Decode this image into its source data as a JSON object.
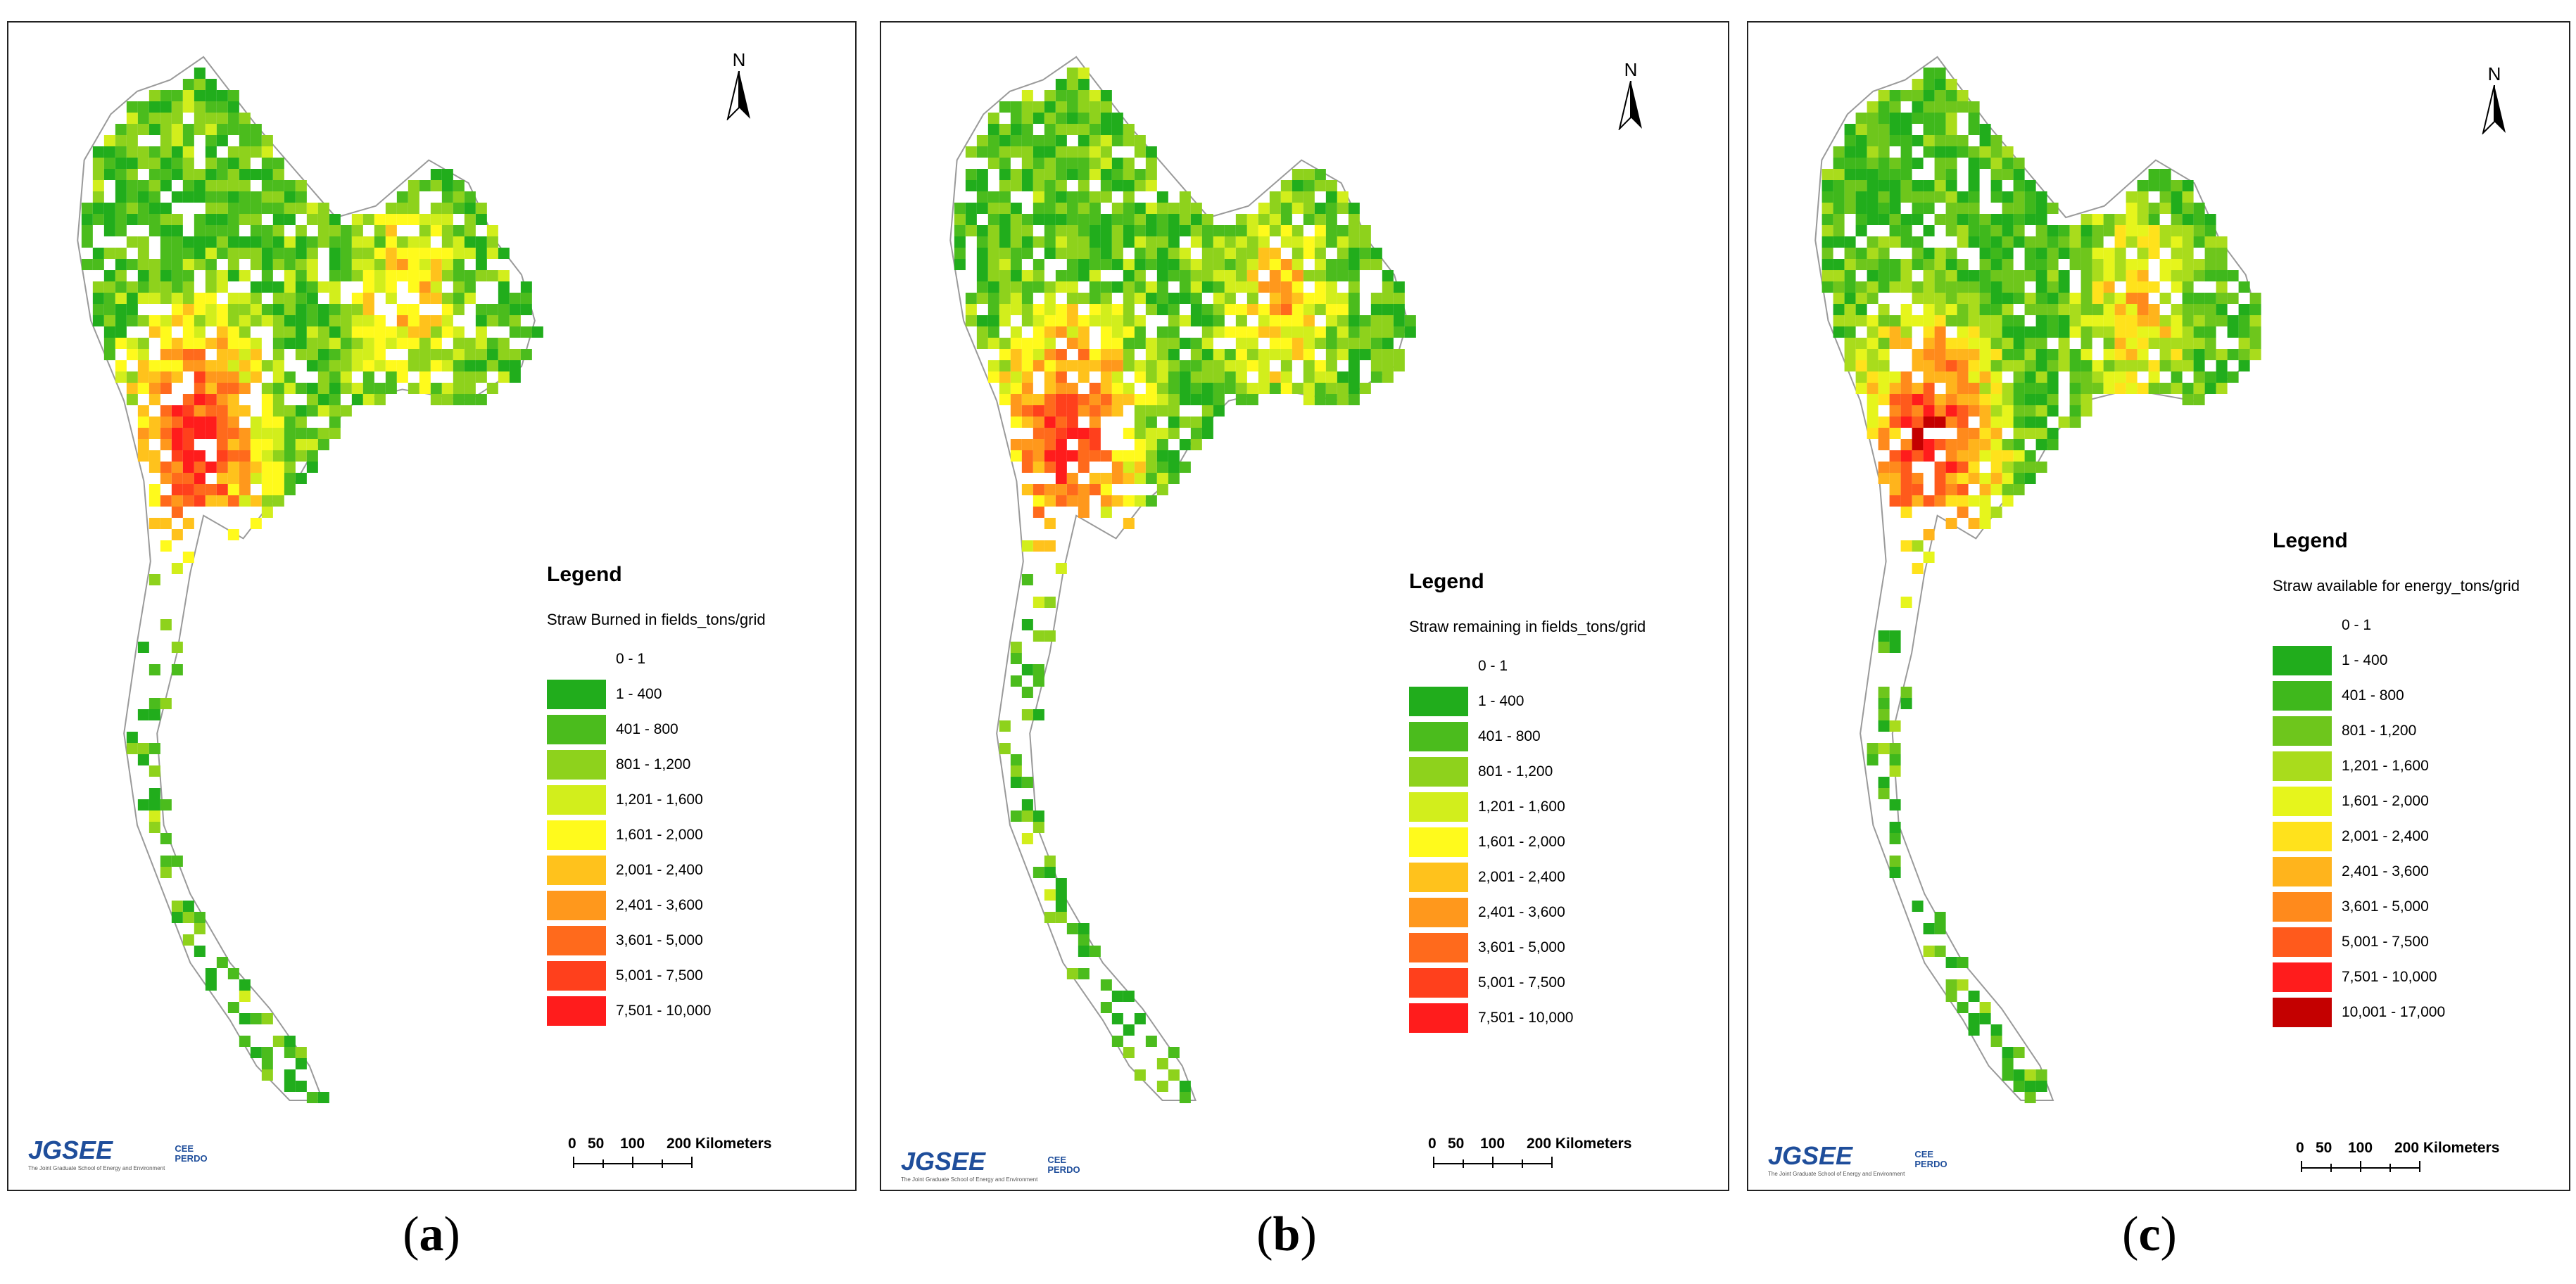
{
  "panels": [
    {
      "caption_letter": "a",
      "north_label": "N",
      "legend_title": "Legend",
      "legend_subtitle": "Straw Burned in fields_tons/grid",
      "classes": [
        {
          "label": "0 - 1",
          "color": ""
        },
        {
          "label": "1 - 400",
          "color": "#21ad1c"
        },
        {
          "label": "401 - 800",
          "color": "#4bbc1d"
        },
        {
          "label": "801 - 1,200",
          "color": "#8ed21c"
        },
        {
          "label": "1,201 - 1,600",
          "color": "#d2ee1c"
        },
        {
          "label": "1,601 - 2,000",
          "color": "#fffa1c"
        },
        {
          "label": "2,001 - 2,400",
          "color": "#ffc21c"
        },
        {
          "label": "2,401 - 3,600",
          "color": "#ff981c"
        },
        {
          "label": "3,601 - 5,000",
          "color": "#ff6a1c"
        },
        {
          "label": "5,001 - 7,500",
          "color": "#ff401c"
        },
        {
          "label": "7,501 - 10,000",
          "color": "#ff1c1c"
        }
      ],
      "scale_labels": [
        "0",
        "50",
        "100",
        "200 Kilometers"
      ],
      "logo_text": "JGSEE",
      "logo_sub": "The Joint Graduate School of Energy and Environment",
      "logo2_text": "CEE PERDO"
    },
    {
      "caption_letter": "b",
      "north_label": "N",
      "legend_title": "Legend",
      "legend_subtitle": "Straw remaining in fields_tons/grid",
      "classes": [
        {
          "label": "0 - 1",
          "color": ""
        },
        {
          "label": "1 - 400",
          "color": "#21ad1c"
        },
        {
          "label": "401 - 800",
          "color": "#4bbc1d"
        },
        {
          "label": "801 - 1,200",
          "color": "#8ed21c"
        },
        {
          "label": "1,201 - 1,600",
          "color": "#d2ee1c"
        },
        {
          "label": "1,601 - 2,000",
          "color": "#fffa1c"
        },
        {
          "label": "2,001 - 2,400",
          "color": "#ffc21c"
        },
        {
          "label": "2,401 - 3,600",
          "color": "#ff981c"
        },
        {
          "label": "3,601 - 5,000",
          "color": "#ff6a1c"
        },
        {
          "label": "5,001 - 7,500",
          "color": "#ff401c"
        },
        {
          "label": "7,501 - 10,000",
          "color": "#ff1c1c"
        }
      ],
      "scale_labels": [
        "0",
        "50",
        "100",
        "200 Kilometers"
      ],
      "logo_text": "JGSEE",
      "logo_sub": "The Joint Graduate School of Energy and Environment",
      "logo2_text": "CEE PERDO"
    },
    {
      "caption_letter": "c",
      "north_label": "N",
      "legend_title": "Legend",
      "legend_subtitle": "Straw available for energy_tons/grid",
      "classes": [
        {
          "label": "0 - 1",
          "color": ""
        },
        {
          "label": "1 - 400",
          "color": "#21ad1c"
        },
        {
          "label": "401 - 800",
          "color": "#3fb81c"
        },
        {
          "label": "801 - 1,200",
          "color": "#6ec61c"
        },
        {
          "label": "1,201 - 1,600",
          "color": "#a9dc1c"
        },
        {
          "label": "1,601 - 2,000",
          "color": "#e6f51c"
        },
        {
          "label": "2,001 - 2,400",
          "color": "#ffe21c"
        },
        {
          "label": "2,401 - 3,600",
          "color": "#ffb41c"
        },
        {
          "label": "3,601 - 5,000",
          "color": "#ff8a1c"
        },
        {
          "label": "5,001 - 7,500",
          "color": "#ff5a1c"
        },
        {
          "label": "7,501 - 10,000",
          "color": "#ff1c1c"
        },
        {
          "label": "10,001 - 17,000",
          "color": "#c40000"
        }
      ],
      "scale_labels": [
        "0",
        "50",
        "100",
        "200 Kilometers"
      ],
      "logo_text": "JGSEE",
      "logo_sub": "The Joint Graduate School of Energy and Environment",
      "logo2_text": "CEE PERDO"
    }
  ]
}
